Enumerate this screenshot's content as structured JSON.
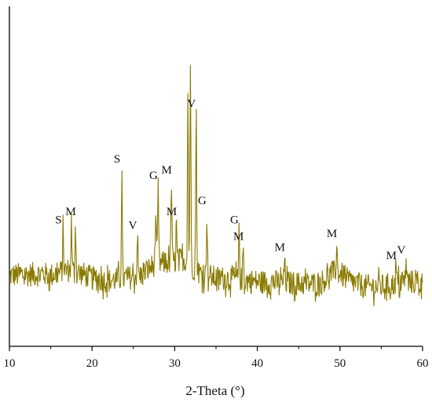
{
  "chart_data": {
    "type": "line",
    "title": "",
    "xlabel": "2-Theta (°)",
    "ylabel": "",
    "xlim": [
      10,
      60
    ],
    "ylim": [
      0,
      100
    ],
    "y_ticks_shown": false,
    "grid": false,
    "legend": "none",
    "line_color": "#8a7a00",
    "x_ticks": [
      10,
      20,
      30,
      40,
      50,
      60
    ],
    "baseline": {
      "center": 12,
      "jitter": 4.5,
      "segments": [
        [
          10,
          14
        ],
        [
          14,
          14.5
        ],
        [
          15,
          14
        ],
        [
          17,
          16
        ],
        [
          18.5,
          15
        ],
        [
          20,
          13
        ],
        [
          22,
          12
        ],
        [
          24,
          13
        ],
        [
          26,
          14
        ],
        [
          27.5,
          18
        ],
        [
          30,
          19
        ],
        [
          31,
          20
        ],
        [
          33,
          15
        ],
        [
          35,
          13
        ],
        [
          37,
          13
        ],
        [
          39,
          12
        ],
        [
          41,
          11.5
        ],
        [
          43,
          11.5
        ],
        [
          45,
          11
        ],
        [
          47,
          11
        ],
        [
          48,
          12
        ],
        [
          49,
          15
        ],
        [
          50,
          15
        ],
        [
          51,
          12
        ],
        [
          53,
          10
        ],
        [
          55,
          10
        ],
        [
          57,
          11
        ],
        [
          58,
          12
        ],
        [
          60,
          11
        ]
      ]
    },
    "peaks": [
      {
        "x": 16.5,
        "y": 30,
        "label": "S"
      },
      {
        "x": 17.5,
        "y": 34,
        "label": ""
      },
      {
        "x": 18.0,
        "y": 33,
        "label": "M"
      },
      {
        "x": 23.6,
        "y": 52,
        "label": "S"
      },
      {
        "x": 25.5,
        "y": 28,
        "label": "V"
      },
      {
        "x": 27.7,
        "y": 36,
        "label": ""
      },
      {
        "x": 28.0,
        "y": 46,
        "label": "G"
      },
      {
        "x": 29.6,
        "y": 48,
        "label": "M"
      },
      {
        "x": 30.2,
        "y": 33,
        "label": "M"
      },
      {
        "x": 31.6,
        "y": 80,
        "label": ""
      },
      {
        "x": 31.9,
        "y": 92,
        "label": ""
      },
      {
        "x": 32.6,
        "y": 72,
        "label": "V"
      },
      {
        "x": 33.9,
        "y": 37,
        "label": "G"
      },
      {
        "x": 37.8,
        "y": 30,
        "label": "G"
      },
      {
        "x": 38.3,
        "y": 24,
        "label": "M"
      },
      {
        "x": 43.3,
        "y": 20,
        "label": "M"
      },
      {
        "x": 49.6,
        "y": 25,
        "label": "M"
      },
      {
        "x": 56.8,
        "y": 17,
        "label": "M"
      },
      {
        "x": 58.0,
        "y": 19,
        "label": "V"
      }
    ]
  }
}
